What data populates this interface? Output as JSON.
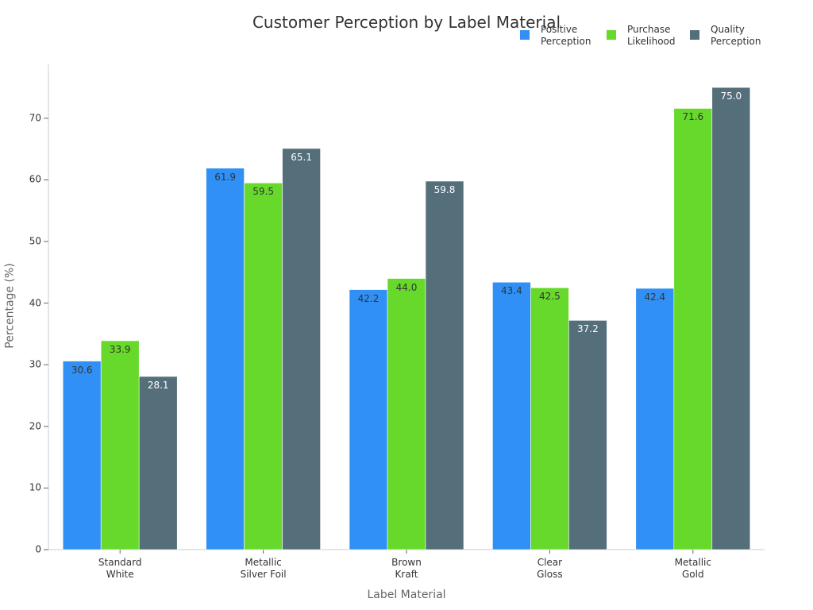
{
  "chart_data": {
    "type": "bar",
    "title": "Customer Perception by Label Material",
    "x_label": "Label Material",
    "y_label": "Percentage (%)",
    "categories": [
      "Standard\nWhite",
      "Metallic\nSilver Foil",
      "Brown\nKraft",
      "Clear\nGloss",
      "Metallic\nGold"
    ],
    "series": [
      {
        "name": "Positive\nPerception",
        "color": "#3090f5",
        "values": [
          30.6,
          61.9,
          42.2,
          43.4,
          42.4
        ],
        "value_labels": [
          "30.6",
          "61.9",
          "42.2",
          "43.4",
          "42.4"
        ]
      },
      {
        "name": "Purchase\nLikelihood",
        "color": "#66d92a",
        "values": [
          33.9,
          59.5,
          44,
          42.5,
          71.6
        ],
        "value_labels": [
          "33.9",
          "59.5",
          "44.0",
          "42.5",
          "71.6"
        ]
      },
      {
        "name": "Quality\nPerception",
        "color": "#546e7a",
        "values": [
          28.1,
          65.1,
          59.8,
          37.2,
          75
        ],
        "value_labels": [
          "28.1",
          "65.1",
          "59.8",
          "37.2",
          "75.0"
        ]
      }
    ],
    "ylim": [
      0,
      78.75
    ],
    "yticks": [
      0,
      10,
      20,
      30,
      40,
      50,
      60,
      70
    ],
    "grid": false,
    "legend": "top-right"
  }
}
